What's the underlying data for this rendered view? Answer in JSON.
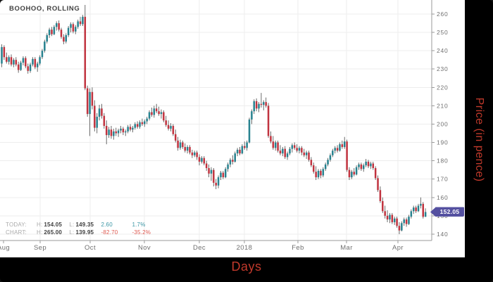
{
  "window": {
    "symbol_label": "BOOHOO, ROLLING"
  },
  "price_badge": {
    "value": "152.05"
  },
  "axes": {
    "y_title": "Price (in pence)",
    "x_title": "Days",
    "y_ticks": [
      260,
      250,
      240,
      230,
      220,
      210,
      200,
      190,
      180,
      170,
      160,
      150,
      140
    ],
    "months": [
      "Aug",
      "Sep",
      "Oct",
      "Nov",
      "Dec",
      "2018",
      "Feb",
      "Mar",
      "Apr"
    ]
  },
  "stats": {
    "today": {
      "label": "TODAY:",
      "h_label": "H:",
      "high": "154.05",
      "l_label": "L:",
      "low": "149.35",
      "change": "2.60",
      "change_pct": "1.7%"
    },
    "chart": {
      "label": "CHART:",
      "h_label": "H:",
      "high": "265.00",
      "l_label": "L:",
      "low": "139.95",
      "change": "-82.70",
      "change_pct": "-35.2%"
    }
  },
  "colors": {
    "up_candle": "#26818e",
    "down_candle": "#c0323e",
    "wick": "#5c5c5c",
    "grid": "#ededed",
    "axis_line": "#9a9a9a",
    "tick_text": "#6f6f6f",
    "badge": "#5450a0",
    "accent_red_text": "#c0392b",
    "pos_text": "#3b96a5",
    "neg_text": "#df5950"
  },
  "chart_data": {
    "type": "candlestick",
    "symbol": "BOOHOO",
    "title": "BOOHOO, ROLLING",
    "xlabel": "Days",
    "ylabel": "Price (in pence)",
    "x_range": "Aug 2017 - mid Apr 2018, daily candles",
    "ylim": [
      136,
      268
    ],
    "grid": true,
    "chart_high": 265.0,
    "chart_low": 139.95,
    "chart_change": -82.7,
    "chart_change_pct": "-35.2%",
    "today_high": 154.05,
    "today_low": 149.35,
    "today_change": 2.6,
    "today_change_pct": "1.7%",
    "last_price": 152.05,
    "candles_format": [
      "open",
      "high",
      "low",
      "close"
    ],
    "candles": [
      [
        233,
        243.5,
        231,
        242
      ],
      [
        242,
        243,
        235,
        236.5
      ],
      [
        236.5,
        239,
        233,
        234
      ],
      [
        234,
        237.5,
        232.5,
        236.5
      ],
      [
        236.5,
        238,
        231.5,
        232.5
      ],
      [
        232.5,
        236,
        231,
        235
      ],
      [
        235,
        236.5,
        231.5,
        232.5
      ],
      [
        232.5,
        234,
        228,
        229.5
      ],
      [
        229.5,
        234.5,
        229,
        233.5
      ],
      [
        233.5,
        237,
        232,
        236
      ],
      [
        236,
        237,
        230.5,
        231.5
      ],
      [
        231.5,
        233,
        227.5,
        229
      ],
      [
        229,
        233.5,
        228,
        232.5
      ],
      [
        232.5,
        236.5,
        231.5,
        235.5
      ],
      [
        235.5,
        236.5,
        230,
        231
      ],
      [
        231,
        234,
        228.5,
        233
      ],
      [
        233,
        237.5,
        232,
        236.5
      ],
      [
        236.5,
        241,
        235.5,
        240
      ],
      [
        240,
        246,
        239,
        245
      ],
      [
        245,
        249.5,
        244,
        248.5
      ],
      [
        248.5,
        252.5,
        247,
        251.5
      ],
      [
        251.5,
        253,
        248,
        249
      ],
      [
        249,
        254,
        248.5,
        253
      ],
      [
        253,
        256,
        251,
        255
      ],
      [
        255,
        256.5,
        250.5,
        251.5
      ],
      [
        251.5,
        252.5,
        246.5,
        247.5
      ],
      [
        247.5,
        249,
        243.5,
        245
      ],
      [
        245,
        249.5,
        244,
        248.5
      ],
      [
        248.5,
        253.5,
        247.5,
        252.5
      ],
      [
        252.5,
        255.5,
        250,
        254.5
      ],
      [
        254.5,
        255.5,
        249.5,
        250.5
      ],
      [
        250.5,
        254,
        249,
        253
      ],
      [
        253,
        257,
        252,
        256
      ],
      [
        256,
        258.5,
        253.5,
        254.5
      ],
      [
        254.5,
        259.5,
        253.5,
        258.5
      ],
      [
        258.5,
        265,
        218.5,
        219.5
      ],
      [
        219.5,
        221,
        204,
        205.5
      ],
      [
        205.5,
        219.5,
        193.5,
        217.5
      ],
      [
        217.5,
        220,
        208,
        210
      ],
      [
        210,
        213,
        196,
        198
      ],
      [
        198,
        206,
        195,
        204
      ],
      [
        204,
        210.5,
        202,
        208.5
      ],
      [
        208.5,
        211,
        203,
        204.5
      ],
      [
        204.5,
        206,
        197.5,
        199
      ],
      [
        199,
        202,
        189,
        194
      ],
      [
        194,
        198.5,
        192.5,
        197
      ],
      [
        197,
        199,
        192,
        193.5
      ],
      [
        193.5,
        197.5,
        191.5,
        196
      ],
      [
        196,
        198,
        193.5,
        195
      ],
      [
        195,
        197.5,
        193,
        196.5
      ],
      [
        196.5,
        199,
        195,
        197.5
      ],
      [
        197.5,
        198.5,
        194,
        195.5
      ],
      [
        195.5,
        197,
        193.5,
        196
      ],
      [
        196,
        199.5,
        195,
        198.5
      ],
      [
        198.5,
        200,
        196,
        197
      ],
      [
        197,
        199,
        195.5,
        198
      ],
      [
        198,
        201,
        197,
        200
      ],
      [
        200,
        201.5,
        197.5,
        198.5
      ],
      [
        198.5,
        202,
        197.5,
        201
      ],
      [
        201,
        203,
        199,
        200
      ],
      [
        200,
        202.5,
        198.5,
        201.5
      ],
      [
        201.5,
        204,
        200,
        203
      ],
      [
        203,
        207.5,
        202,
        206.5
      ],
      [
        206.5,
        209,
        204,
        205
      ],
      [
        205,
        210,
        203.5,
        208.5
      ],
      [
        208.5,
        211,
        206,
        207
      ],
      [
        207,
        209.5,
        204.5,
        205.5
      ],
      [
        205.5,
        208,
        203,
        206.5
      ],
      [
        206.5,
        207.5,
        201,
        202
      ],
      [
        202,
        204.5,
        198.5,
        199.5
      ],
      [
        199.5,
        202,
        196.5,
        197.5
      ],
      [
        197.5,
        200.5,
        196,
        199
      ],
      [
        199,
        200,
        193.5,
        194.5
      ],
      [
        194.5,
        197,
        190,
        191
      ],
      [
        191,
        193,
        185.5,
        187
      ],
      [
        187,
        191.5,
        186,
        190
      ],
      [
        190,
        191,
        186.5,
        187.5
      ],
      [
        187.5,
        189.5,
        184.5,
        185.5
      ],
      [
        185.5,
        188.5,
        184,
        187.5
      ],
      [
        187.5,
        188.5,
        183.5,
        184.5
      ],
      [
        184.5,
        186,
        181.5,
        183
      ],
      [
        183,
        185.5,
        182,
        184.5
      ],
      [
        184.5,
        185.5,
        180.5,
        182
      ],
      [
        182,
        183.5,
        177.5,
        179.5
      ],
      [
        179.5,
        182.5,
        178.5,
        181.5
      ],
      [
        181.5,
        182.5,
        177.5,
        178.5
      ],
      [
        178.5,
        180,
        174.5,
        176
      ],
      [
        176,
        178,
        171,
        173
      ],
      [
        173,
        176.5,
        169,
        175
      ],
      [
        175,
        176,
        166,
        168
      ],
      [
        168,
        170,
        164.5,
        166.5
      ],
      [
        166.5,
        172,
        165,
        171
      ],
      [
        171,
        174.5,
        169.5,
        173.5
      ],
      [
        173.5,
        174.5,
        170,
        171
      ],
      [
        171,
        176.5,
        170.5,
        175.5
      ],
      [
        175.5,
        179,
        174,
        178
      ],
      [
        178,
        181.5,
        176.5,
        180.5
      ],
      [
        180.5,
        183,
        178,
        179.5
      ],
      [
        179.5,
        185,
        179,
        184
      ],
      [
        184,
        187,
        182.5,
        186
      ],
      [
        186,
        187.5,
        183,
        184
      ],
      [
        184,
        189,
        183.5,
        188
      ],
      [
        188,
        190.5,
        186,
        187
      ],
      [
        187,
        191,
        185.5,
        190
      ],
      [
        190,
        203.5,
        189.5,
        202.5
      ],
      [
        202.5,
        208,
        200,
        207
      ],
      [
        207,
        213.5,
        205.5,
        212.5
      ],
      [
        212.5,
        214,
        207,
        208.5
      ],
      [
        208.5,
        212,
        206.5,
        211
      ],
      [
        211,
        217,
        209,
        210.5
      ],
      [
        210.5,
        213,
        207.5,
        212
      ],
      [
        212,
        214.5,
        209,
        210
      ],
      [
        210,
        211.5,
        192.5,
        193.5
      ],
      [
        193.5,
        196,
        189.5,
        190.5
      ],
      [
        190.5,
        193.5,
        186,
        187
      ],
      [
        187,
        191,
        185.5,
        190
      ],
      [
        190,
        191,
        184.5,
        185.5
      ],
      [
        185.5,
        188.5,
        183,
        184
      ],
      [
        184,
        187.5,
        182.5,
        186.5
      ],
      [
        186.5,
        188,
        181,
        182
      ],
      [
        182,
        185,
        180.5,
        184
      ],
      [
        184,
        187.5,
        183,
        186.5
      ],
      [
        186.5,
        189.5,
        184.5,
        188.5
      ],
      [
        188.5,
        190,
        186,
        187
      ],
      [
        187,
        189,
        184.5,
        185.5
      ],
      [
        185.5,
        188,
        184,
        187
      ],
      [
        187,
        188,
        183,
        184.5
      ],
      [
        184.5,
        186.5,
        182,
        183
      ],
      [
        183,
        185.5,
        181,
        184.5
      ],
      [
        184.5,
        185.5,
        179.5,
        180.5
      ],
      [
        180.5,
        182,
        176.5,
        177.5
      ],
      [
        177.5,
        179,
        173,
        174
      ],
      [
        174,
        177,
        169.5,
        171
      ],
      [
        171,
        175.5,
        170,
        174.5
      ],
      [
        174.5,
        175.5,
        170.5,
        172
      ],
      [
        172,
        176.5,
        171,
        175.5
      ],
      [
        175.5,
        179,
        174.5,
        178
      ],
      [
        178,
        181.5,
        177,
        180.5
      ],
      [
        180.5,
        184,
        179.5,
        183
      ],
      [
        183,
        186.5,
        182,
        185.5
      ],
      [
        185.5,
        188,
        184,
        187
      ],
      [
        187,
        188.5,
        184.5,
        185.5
      ],
      [
        185.5,
        190,
        185,
        189
      ],
      [
        189,
        191,
        186.5,
        187.5
      ],
      [
        187.5,
        193,
        186.5,
        190.5
      ],
      [
        190.5,
        191.5,
        174,
        175
      ],
      [
        175,
        176.5,
        169.5,
        171
      ],
      [
        171,
        175,
        170,
        174
      ],
      [
        174,
        176,
        171.5,
        172.5
      ],
      [
        172.5,
        177.5,
        172,
        176.5
      ],
      [
        176.5,
        179,
        175,
        178
      ],
      [
        178,
        179,
        174.5,
        175.5
      ],
      [
        175.5,
        178.5,
        174,
        177.5
      ],
      [
        177.5,
        181,
        176.5,
        179.5
      ],
      [
        179.5,
        180.5,
        176,
        177
      ],
      [
        177,
        179.5,
        175.5,
        178.5
      ],
      [
        178.5,
        179.5,
        175,
        176
      ],
      [
        176,
        177,
        169.5,
        170.5
      ],
      [
        170.5,
        172,
        163,
        164
      ],
      [
        164,
        166,
        157,
        158
      ],
      [
        158,
        160,
        151.5,
        152.5
      ],
      [
        152.5,
        155.5,
        148.5,
        150
      ],
      [
        150,
        153,
        146.5,
        148
      ],
      [
        148,
        151.5,
        146,
        150.5
      ],
      [
        150.5,
        151.5,
        145.5,
        146.5
      ],
      [
        146.5,
        149.5,
        145,
        148.5
      ],
      [
        148.5,
        149.5,
        143.5,
        144.5
      ],
      [
        144.5,
        146.5,
        139.95,
        142
      ],
      [
        142,
        147,
        141.5,
        146
      ],
      [
        146,
        149,
        144.5,
        148
      ],
      [
        148,
        149,
        144,
        145.5
      ],
      [
        145.5,
        150.5,
        145,
        149.5
      ],
      [
        149.5,
        153.5,
        148.5,
        152.5
      ],
      [
        152.5,
        155.5,
        151,
        154.5
      ],
      [
        154.5,
        155.5,
        151.5,
        152.5
      ],
      [
        152.5,
        156.5,
        152,
        155.5
      ],
      [
        155.5,
        160,
        154,
        156.5
      ],
      [
        156.5,
        157.5,
        148.5,
        149.45
      ],
      [
        149.45,
        154.05,
        149.35,
        152.05
      ]
    ]
  }
}
